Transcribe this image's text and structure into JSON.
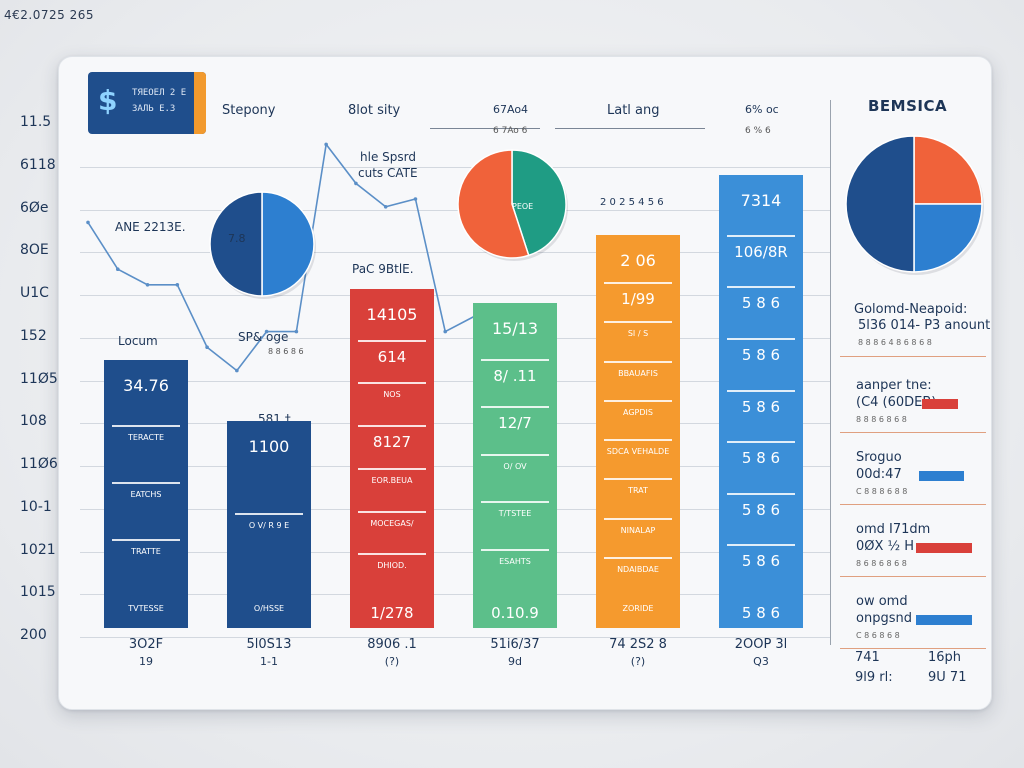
{
  "corner_stamp": "4€2.0725  265",
  "logo": {
    "icon": "dollar-glyph",
    "glyph": "$",
    "line1": "ТЯЕОЕЛ 2 Е",
    "line2": "ЗАЛЬ Е.З"
  },
  "header": {
    "col1": "Stepony",
    "col2": "8lot sity",
    "col3_top": "67Ao4",
    "col3_sub": "6 7Ao 6",
    "col4": "Latl ang",
    "col5_top": "6% oc",
    "col5_sub": "6 % 6"
  },
  "y_axis_labels": [
    "11.5",
    "6118",
    "6Øe",
    "8OE",
    "U1C",
    "152",
    "11Ø5",
    "108",
    "11Ø6",
    "10-1",
    "1021",
    "1015",
    "200"
  ],
  "annotations": {
    "line_label": "hle Spsrd",
    "line_sub": "cuts CATE",
    "ann_left": "ANE 2213E.",
    "pie_small_label": "7.8",
    "pie_mid_label": "PEOE",
    "pac_label": "PaC 9BtlE.",
    "locum": "Locum",
    "spabuge": "SP& oge",
    "spabuge_sub": "8 8 6 8 6",
    "b2_top": "581 †",
    "right_mid": "2 0 2 5 4 5 6"
  },
  "chart_data": {
    "type": "bar",
    "categories": [
      "3O2F",
      "5l0S13",
      "8906 .1",
      "51i6/37",
      "74 2S2 8",
      "2OOP 3l"
    ],
    "category_subs": [
      "19",
      "1-1",
      "(?)",
      "9d",
      "(?)",
      "Q3"
    ],
    "values": [
      34.3,
      26.6,
      43.4,
      41.7,
      50.4,
      58.1
    ],
    "ylim": [
      0,
      70
    ],
    "bar_colors": [
      "#1f4e8c",
      "#1f4e8c",
      "#d9403a",
      "#5cbf8a",
      "#f59a2e",
      "#3b8fd8"
    ],
    "bar_labels": [
      [
        "34.76",
        "TERACTE",
        "EATCHS",
        "TRATTE",
        "TVTESSE"
      ],
      [
        "1100",
        "O V/ R 9 E",
        "O/HSSE"
      ],
      [
        "14105",
        "614",
        "NOS",
        "8127",
        "EOR.BEUA",
        "MOCEGAS/",
        "DHIOD.",
        "1/278"
      ],
      [
        "15/13",
        "8/ .11",
        "12/7",
        "O/ OV",
        "T/TSTEE",
        "ESAHTS",
        "0.10.9"
      ],
      [
        "2 06",
        "1/99",
        "SI / S",
        "BBAUAFIS",
        "AGPDIS",
        "SDCA VEHALDE",
        "TRAT",
        "NINALAP",
        "NDAIBDAE",
        "ZORIDE"
      ],
      [
        "7314",
        "106/8R",
        "5 8 6",
        "5 8 6",
        "5 8 6",
        "5 8 6",
        "5 8 6",
        "5 8 6",
        "5 8 6"
      ]
    ],
    "line_series": {
      "values": [
        52,
        46,
        44,
        44,
        36,
        33,
        38,
        38,
        62,
        57,
        54,
        55,
        38,
        40
      ]
    },
    "pie_charts": [
      {
        "slices": [
          0.5,
          0.5
        ],
        "colors": [
          "#2d7fd0",
          "#1f4e8c"
        ]
      },
      {
        "slices": [
          0.45,
          0.55
        ],
        "colors": [
          "#1f9c84",
          "#f0623a"
        ]
      },
      {
        "slices": [
          0.25,
          0.25,
          0.5
        ],
        "colors": [
          "#f0623a",
          "#2d7fd0",
          "#1f4e8c"
        ]
      }
    ]
  },
  "right_panel": {
    "title": "BEMSICA",
    "section1_line1": "Golomd-Neapoid:",
    "section1_line2": "5l36 014- P3 anount",
    "section1_sub": "8 8 8 6 4 8 6 8 6 8",
    "items": [
      {
        "line1": "aanper tne:",
        "line2": "(C4 (60DEB)",
        "sub": "8 8 8 6 8 6 8",
        "bar_color": "#d9403a",
        "bar_pct": 0.45
      },
      {
        "line1": "Sroguo",
        "line2": "00d:47",
        "sub": "C 8 8 8 6 8 8",
        "bar_color": "#2d7fd0",
        "bar_pct": 0.6
      },
      {
        "line1": "omd I71dm",
        "line2": "0ØX ½ H",
        "sub": "8 6 8 6 8 6 8",
        "bar_color": "#d9403a",
        "bar_pct": 0.8
      },
      {
        "line1": "ow omd",
        "line2": "onpgsnd",
        "sub": "C 8 6 8 6 8",
        "bar_color": "#2d7fd0",
        "bar_pct": 0.8
      }
    ],
    "footer": [
      {
        "left": "741",
        "right": "16ph"
      },
      {
        "left": "9l9 rl:",
        "right": "9U 71"
      }
    ]
  }
}
